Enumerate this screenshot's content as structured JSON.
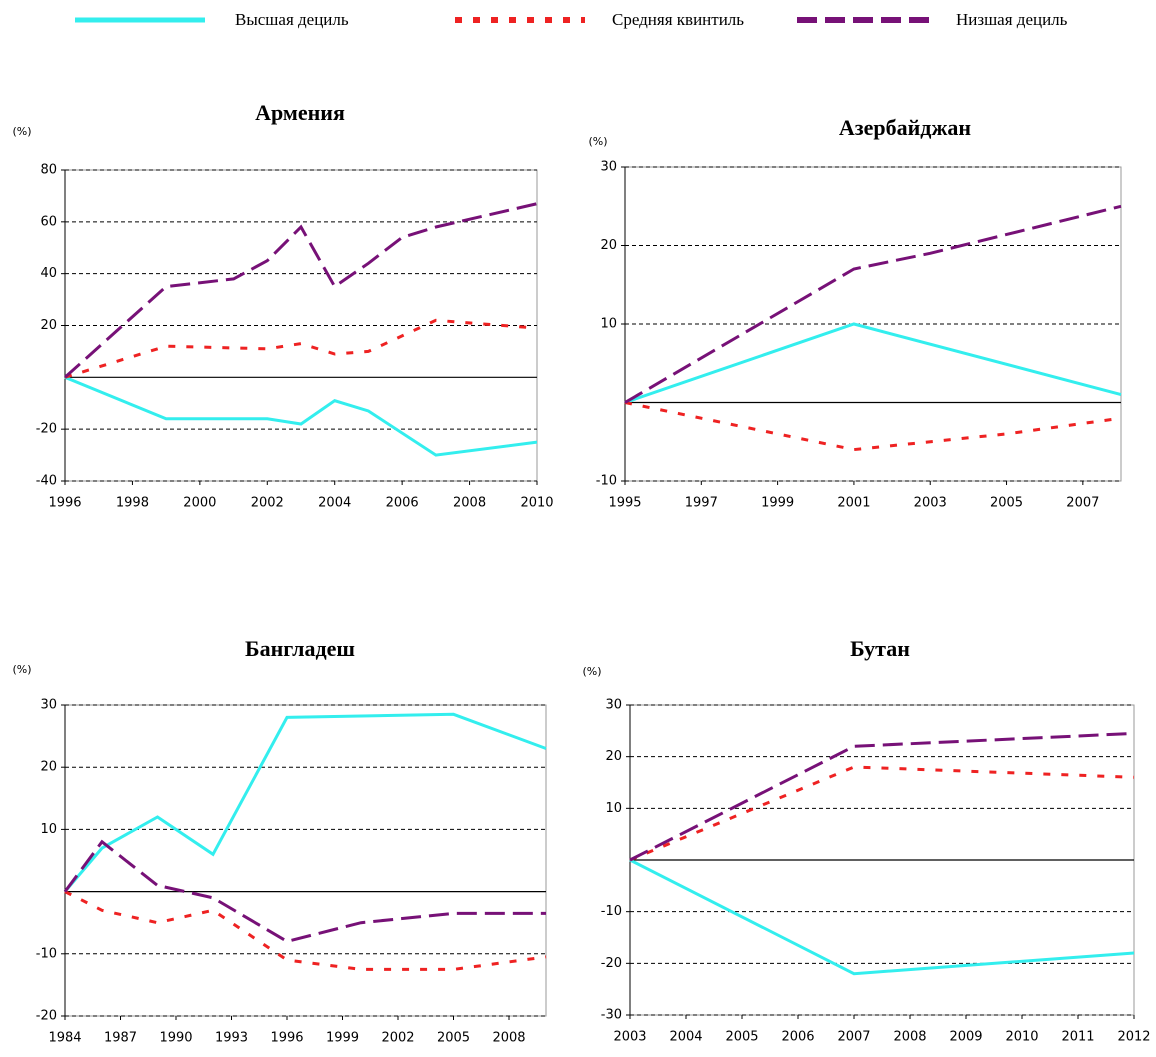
{
  "chart_data": [
    {
      "type": "line",
      "title": "Армения",
      "y_label": "(%)",
      "xlim": [
        1996,
        2010
      ],
      "xticks": [
        1996,
        1998,
        2000,
        2002,
        2004,
        2006,
        2008,
        2010
      ],
      "ylim": [
        -40,
        80
      ],
      "yticks": [
        -40,
        -20,
        20,
        40,
        60,
        80
      ],
      "grid": true,
      "series": [
        {
          "name": "Высшая дециль",
          "color": "#33eeee",
          "linestyle": "solid",
          "x": [
            1996,
            1999,
            2002,
            2003,
            2004,
            2005,
            2007,
            2010
          ],
          "values": [
            0,
            -16,
            -16,
            -18,
            -9,
            -13,
            -30,
            -25
          ]
        },
        {
          "name": "Средняя квинтиль",
          "color": "#ee2222",
          "linestyle": "dotted",
          "x": [
            1996,
            1999,
            2002,
            2003,
            2004,
            2005,
            2007,
            2010
          ],
          "values": [
            0,
            12,
            11,
            13,
            9,
            10,
            22,
            19
          ]
        },
        {
          "name": "Низшая дециль",
          "color": "#771177",
          "linestyle": "dashed",
          "x": [
            1996,
            1999,
            2001,
            2002,
            2003,
            2004,
            2005,
            2006,
            2007,
            2010
          ],
          "values": [
            0,
            35,
            38,
            45,
            58,
            35,
            44,
            54,
            58,
            67
          ]
        }
      ]
    },
    {
      "type": "line",
      "title": "Азербайджан",
      "y_label": "(%)",
      "xlim": [
        1995,
        2008
      ],
      "xticks": [
        1995,
        1997,
        1999,
        2001,
        2003,
        2005,
        2007
      ],
      "ylim": [
        -10,
        30
      ],
      "yticks": [
        -10,
        10,
        20,
        30
      ],
      "grid": true,
      "series": [
        {
          "name": "Высшая дециль",
          "color": "#33eeee",
          "linestyle": "solid",
          "x": [
            1995,
            2001,
            2008
          ],
          "values": [
            0,
            10,
            1
          ]
        },
        {
          "name": "Средняя квинтиль",
          "color": "#ee2222",
          "linestyle": "dotted",
          "x": [
            1995,
            2001,
            2005,
            2008
          ],
          "values": [
            0,
            -6,
            -4,
            -2
          ]
        },
        {
          "name": "Низшая дециль",
          "color": "#771177",
          "linestyle": "dashed",
          "x": [
            1995,
            2001,
            2003,
            2008
          ],
          "values": [
            0,
            17,
            19,
            25
          ]
        }
      ]
    },
    {
      "type": "line",
      "title": "Бангладеш",
      "y_label": "(%)",
      "xlim": [
        1984,
        2010
      ],
      "xticks": [
        1984,
        1987,
        1990,
        1993,
        1996,
        1999,
        2002,
        2005,
        2008
      ],
      "ylim": [
        -20,
        30
      ],
      "yticks": [
        -20,
        -10,
        10,
        20,
        30
      ],
      "grid": true,
      "series": [
        {
          "name": "Высшая дециль",
          "color": "#33eeee",
          "linestyle": "solid",
          "x": [
            1984,
            1986,
            1989,
            1992,
            1996,
            2005,
            2010
          ],
          "values": [
            0,
            7,
            12,
            6,
            28,
            28.5,
            23
          ]
        },
        {
          "name": "Средняя квинтиль",
          "color": "#ee2222",
          "linestyle": "dotted",
          "x": [
            1984,
            1986,
            1989,
            1992,
            1996,
            2000,
            2005,
            2010
          ],
          "values": [
            0,
            -3,
            -5,
            -3,
            -11,
            -12.5,
            -12.5,
            -10.5
          ]
        },
        {
          "name": "Низшая дециль",
          "color": "#771177",
          "linestyle": "dashed",
          "x": [
            1984,
            1986,
            1989,
            1992,
            1996,
            2000,
            2005,
            2010
          ],
          "values": [
            0,
            8,
            1,
            -1,
            -8,
            -5,
            -3.5,
            -3.5
          ]
        }
      ]
    },
    {
      "type": "line",
      "title": "Бутан",
      "y_label": "(%)",
      "xlim": [
        2003,
        2012
      ],
      "xticks": [
        2003,
        2004,
        2005,
        2006,
        2007,
        2008,
        2009,
        2010,
        2011,
        2012
      ],
      "ylim": [
        -30,
        30
      ],
      "yticks": [
        -30,
        -20,
        -10,
        10,
        20,
        30
      ],
      "grid": true,
      "series": [
        {
          "name": "Высшая дециль",
          "color": "#33eeee",
          "linestyle": "solid",
          "x": [
            2003,
            2007,
            2012
          ],
          "values": [
            0,
            -22,
            -18
          ]
        },
        {
          "name": "Средняя квинтиль",
          "color": "#ee2222",
          "linestyle": "dotted",
          "x": [
            2003,
            2007,
            2012
          ],
          "values": [
            0,
            18,
            16
          ]
        },
        {
          "name": "Низшая дециль",
          "color": "#771177",
          "linestyle": "dashed",
          "x": [
            2003,
            2007,
            2012
          ],
          "values": [
            0,
            22,
            24.5
          ]
        }
      ]
    }
  ]
}
